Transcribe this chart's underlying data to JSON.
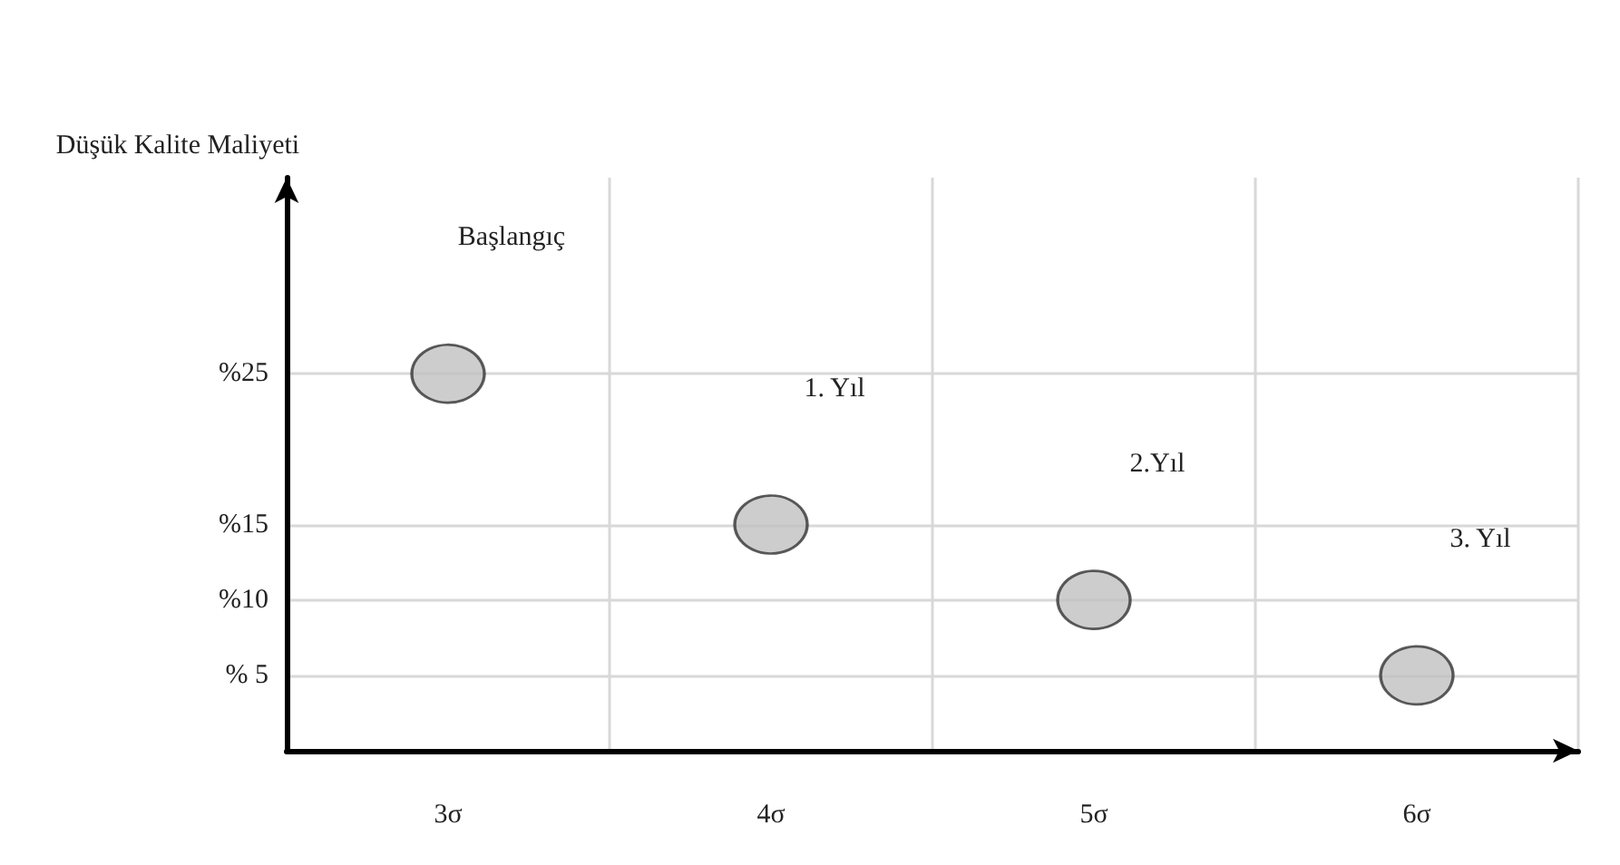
{
  "chart_data": {
    "type": "scatter",
    "ylabel": "Düşük Kalite Maliyeti",
    "categories": [
      "3σ",
      "4σ",
      "5σ",
      "6σ"
    ],
    "series": [
      {
        "color": "#c0c0c0",
        "values": [
          25,
          15,
          10,
          5
        ]
      }
    ],
    "ylim": [
      0,
      38
    ],
    "yticks": [
      {
        "value": 5,
        "label": "% 5"
      },
      {
        "value": 10,
        "label": "%10"
      },
      {
        "value": 15,
        "label": "%15"
      },
      {
        "value": 25,
        "label": "%25"
      }
    ],
    "annotations": [
      "Başlangıç",
      "1. Yıl",
      "2.Yıl",
      "3. Yıl"
    ],
    "grid": true,
    "marker": "circle"
  }
}
